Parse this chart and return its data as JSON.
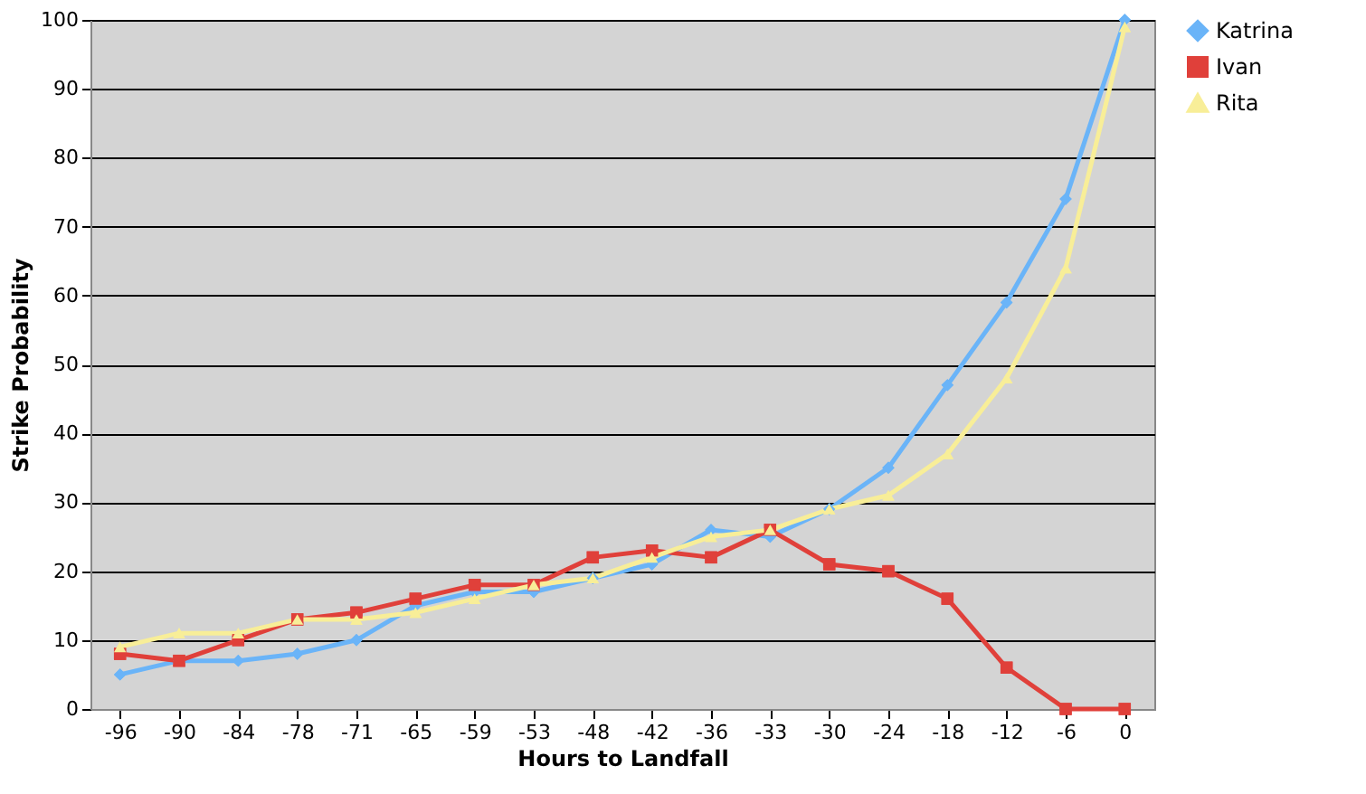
{
  "chart_data": {
    "type": "line",
    "xlabel": "Hours to Landfall",
    "ylabel": "Strike Probability",
    "categories": [
      "-96",
      "-90",
      "-84",
      "-78",
      "-71",
      "-65",
      "-59",
      "-53",
      "-48",
      "-42",
      "-36",
      "-33",
      "-30",
      "-24",
      "-18",
      "-12",
      "-6",
      "0"
    ],
    "series": [
      {
        "name": "Katrina",
        "color": "#6ab4f8",
        "marker": "diamond",
        "values": [
          5,
          7,
          7,
          8,
          10,
          15,
          17,
          17,
          19,
          21,
          26,
          25,
          29,
          35,
          47,
          59,
          74,
          100
        ]
      },
      {
        "name": "Ivan",
        "color": "#e0403a",
        "marker": "square",
        "values": [
          8,
          7,
          10,
          13,
          14,
          16,
          18,
          18,
          22,
          23,
          22,
          26,
          21,
          20,
          16,
          6,
          0,
          0
        ]
      },
      {
        "name": "Rita",
        "color": "#f8ee98",
        "marker": "triangle",
        "values": [
          9,
          11,
          11,
          13,
          13,
          14,
          16,
          18,
          19,
          22,
          25,
          26,
          29,
          31,
          37,
          48,
          64,
          99
        ]
      }
    ],
    "ylim": [
      0,
      100
    ],
    "yticks": [
      0,
      10,
      20,
      30,
      40,
      50,
      60,
      70,
      80,
      90,
      100
    ],
    "grid": "y",
    "legend": "right",
    "line_style": "solid"
  }
}
